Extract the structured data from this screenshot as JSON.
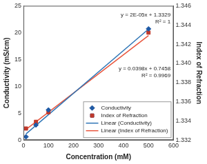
{
  "chart_data": {
    "type": "scatter",
    "x_label": "Concentration (mM)",
    "y_label": "Conductivity (mS/cm)",
    "y2_label": "Index of Refraction",
    "x": [
      10,
      50,
      100,
      500
    ],
    "series": [
      {
        "name": "Conductivity",
        "type": "scatter",
        "color": "#1f5aa6",
        "marker": "diamond",
        "values": [
          0.6,
          2.8,
          5.6,
          20.7
        ]
      },
      {
        "name": "Index of Refraction",
        "type": "scatter",
        "color": "#c0392b",
        "marker": "square",
        "axis": "y2",
        "values": [
          1.3332,
          1.3339,
          1.3349,
          1.3432
        ]
      },
      {
        "name": "Linear (Conductivity)",
        "type": "line",
        "color": "#2e75b6",
        "line_style": "solid",
        "x": [
          10,
          500
        ],
        "values": [
          1.14,
          20.65
        ]
      },
      {
        "name": "Linear (Index of Refraction)",
        "type": "line",
        "color": "#e8553d",
        "line_style": "solid",
        "axis": "y2",
        "x": [
          10,
          500
        ],
        "values": [
          1.3331,
          1.3429
        ]
      }
    ],
    "xlim": [
      0,
      600
    ],
    "xticks": [
      0,
      100,
      200,
      300,
      400,
      500,
      600
    ],
    "ylim": [
      0,
      25
    ],
    "yticks": [
      0,
      5,
      10,
      15,
      20,
      25
    ],
    "y2lim": [
      1.332,
      1.346
    ],
    "y2ticks": [
      1.332,
      1.334,
      1.336,
      1.338,
      {
        "value": 1.34,
        "label": "1.340"
      },
      1.342,
      1.344,
      1.346
    ],
    "annotations": [
      [
        "y = 2E-05x + 1.3329",
        "R² = 1"
      ],
      [
        "y = 0.0398x + 0.7458",
        "R² = 0.9969"
      ]
    ],
    "grid": false,
    "legend": "lower right"
  }
}
